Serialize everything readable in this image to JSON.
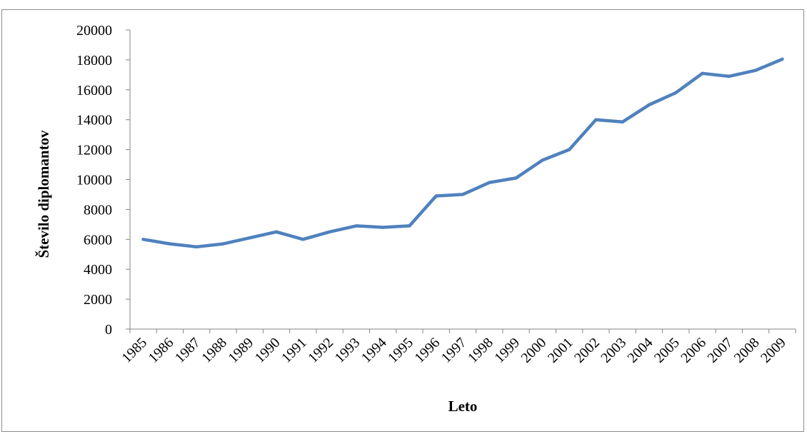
{
  "chart_data": {
    "type": "line",
    "title": "",
    "xlabel": "Leto",
    "ylabel": "Število diplomantov",
    "ylim": [
      0,
      20000
    ],
    "yticks": [
      0,
      2000,
      4000,
      6000,
      8000,
      10000,
      12000,
      14000,
      16000,
      18000,
      20000
    ],
    "grid": false,
    "legend": "none",
    "line_color": "#4f81bd",
    "categories": [
      "1985",
      "1986",
      "1987",
      "1988",
      "1989",
      "1990",
      "1991",
      "1992",
      "1993",
      "1994",
      "1995",
      "1996",
      "1997",
      "1998",
      "1999",
      "2000",
      "2001",
      "2002",
      "2003",
      "2004",
      "2005",
      "2006",
      "2007",
      "2008",
      "2009"
    ],
    "series": [
      {
        "values": [
          6000,
          5700,
          5500,
          5700,
          6100,
          6500,
          6000,
          6500,
          6900,
          6800,
          6900,
          8900,
          9000,
          9800,
          10100,
          11300,
          12000,
          14000,
          13850,
          15000,
          15800,
          17100,
          16900,
          17300,
          18050
        ]
      }
    ]
  }
}
